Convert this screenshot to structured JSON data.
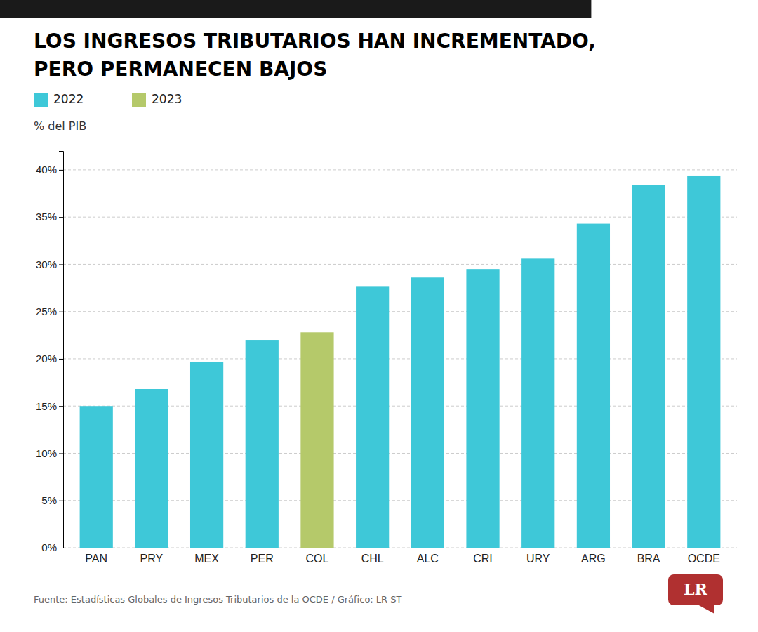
{
  "chart_data": {
    "type": "bar",
    "title": [
      "LOS INGRESOS TRIBUTARIOS HAN INCREMENTADO,",
      "PERO PERMANECEN BAJOS"
    ],
    "ylabel": "% del PIB",
    "categories": [
      "PAN",
      "PRY",
      "MEX",
      "PER",
      "COL",
      "CHL",
      "ALC",
      "CRI",
      "URY",
      "ARG",
      "BRA",
      "OCDE"
    ],
    "series": [
      {
        "name": "2022",
        "color": "#3ec8d8",
        "values": [
          15.0,
          16.8,
          19.7,
          22.0,
          null,
          27.7,
          28.6,
          29.5,
          30.6,
          34.3,
          38.4,
          39.4
        ]
      },
      {
        "name": "2023",
        "color": "#b5c96a",
        "values": [
          null,
          null,
          null,
          null,
          22.8,
          null,
          null,
          null,
          null,
          null,
          null,
          null
        ]
      }
    ],
    "stacked": true,
    "legend": "top",
    "ylim": [
      0,
      42
    ],
    "yticks": [
      {
        "value": 0,
        "label": "0%"
      },
      {
        "value": 5,
        "label": "5%"
      },
      {
        "value": 10,
        "label": "10%"
      },
      {
        "value": 15,
        "label": "15%"
      },
      {
        "value": 20,
        "label": "20%"
      },
      {
        "value": 25,
        "label": "25%"
      },
      {
        "value": 30,
        "label": "30%"
      },
      {
        "value": 35,
        "label": "35%"
      },
      {
        "value": 40,
        "label": "40%"
      }
    ],
    "grid": true,
    "footer": "Fuente: Estadísticas Globales de Ingresos Tributarios de la OCDE / Gráfico: LR-ST",
    "logo": "LR"
  }
}
